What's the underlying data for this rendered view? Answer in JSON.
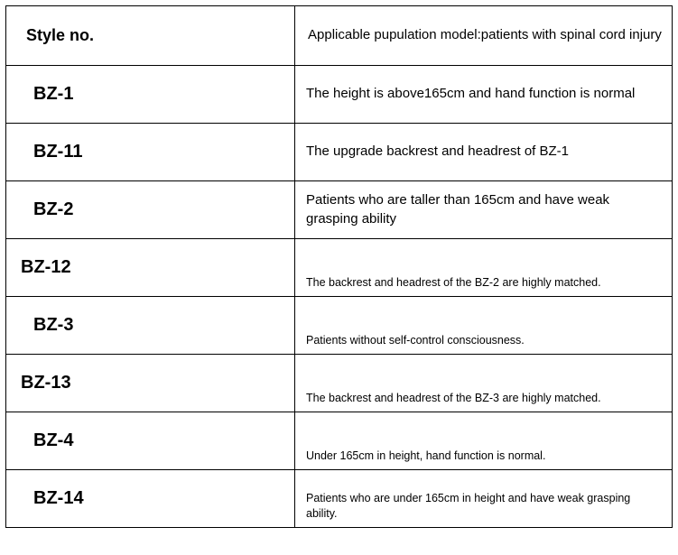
{
  "table": {
    "header": {
      "style_label": "Style no.",
      "desc_label": "Applicable pupulation model:patients with spinal cord injury"
    },
    "rows": [
      {
        "style": "BZ-1",
        "desc": "The height is above165cm and hand function is normal",
        "small": false,
        "tight": false
      },
      {
        "style": "BZ-11",
        "desc": "The upgrade backrest and headrest of BZ-1",
        "small": false,
        "tight": false
      },
      {
        "style": "BZ-2",
        "desc": "Patients who are taller than 165cm and have weak grasping ability",
        "small": false,
        "tight": false
      },
      {
        "style": "BZ-12",
        "desc": "The backrest and headrest of the BZ-2 are highly matched.",
        "small": true,
        "tight": true
      },
      {
        "style": "BZ-3",
        "desc": "Patients without self-control consciousness.",
        "small": true,
        "tight": false
      },
      {
        "style": "BZ-13",
        "desc": "The backrest and headrest of the BZ-3 are highly matched.",
        "small": true,
        "tight": true
      },
      {
        "style": "BZ-4",
        "desc": "Under 165cm in height, hand function is normal.",
        "small": true,
        "tight": false
      },
      {
        "style": "BZ-14",
        "desc": "Patients who are under 165cm in height and have weak grasping ability.",
        "small": true,
        "tight": false
      }
    ]
  },
  "colors": {
    "border": "#000000",
    "background": "#ffffff",
    "text": "#000000"
  }
}
